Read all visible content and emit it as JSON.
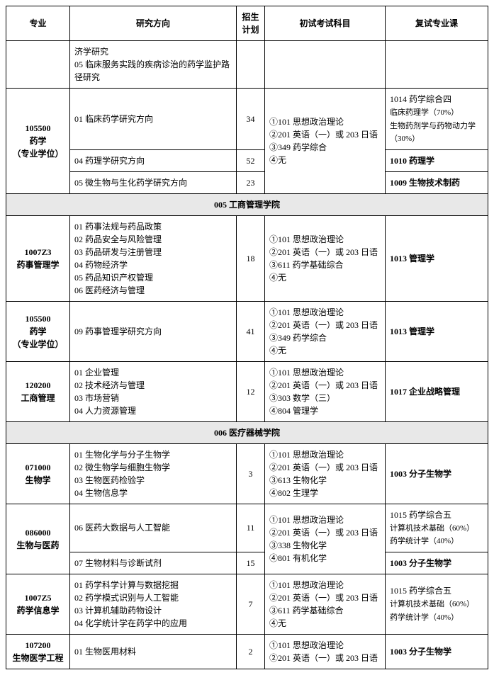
{
  "headers": {
    "major": "专业",
    "direction": "研究方向",
    "plan": "招生计划",
    "exam": "初试考试科目",
    "retest": "复试专业课"
  },
  "rows": [
    {
      "type": "data",
      "major": "",
      "direction": "济学研究\n05 临床服务实践的疾病诊治的药学监护路径研究",
      "plan": "",
      "exam": "",
      "retest": ""
    },
    {
      "type": "data",
      "major": "105500\n药学\n（专业学位）",
      "major_rowspan": 3,
      "direction": "01 临床药学研究方向",
      "plan": "34",
      "exam": "①101 思想政治理论\n②201 英语（一）或 203 日语\n③349 药学综合\n④无",
      "exam_rowspan": 3,
      "retest": "1014 药学综合四\n临床药理学（70%）\n生物药剂学与药物动力学（30%）",
      "retest_bold_first": true
    },
    {
      "type": "data",
      "direction": "04 药理学研究方向",
      "plan": "52",
      "retest": "1010 药理学",
      "retest_bold": true
    },
    {
      "type": "data",
      "direction": "05 微生物与生化药学研究方向",
      "plan": "23",
      "retest": "1009 生物技术制药",
      "retest_bold": true
    },
    {
      "type": "section",
      "label": "005 工商管理学院"
    },
    {
      "type": "data",
      "major": "1007Z3\n药事管理学",
      "direction": "01 药事法规与药品政策\n02 药品安全与风险管理\n03 药品研发与注册管理\n04 药物经济学\n05 药品知识产权管理\n06 医药经济与管理",
      "plan": "18",
      "exam": "①101 思想政治理论\n②201 英语（一）或 203 日语\n③611 药学基础综合\n④无",
      "retest": "1013 管理学",
      "retest_bold": true
    },
    {
      "type": "data",
      "major": "105500\n药学\n（专业学位）",
      "direction": "09 药事管理学研究方向",
      "plan": "41",
      "exam": "①101 思想政治理论\n②201 英语（一）或 203 日语\n③349 药学综合\n④无",
      "retest": "1013 管理学",
      "retest_bold": true
    },
    {
      "type": "data",
      "major": "120200\n工商管理",
      "direction": "01 企业管理\n02 技术经济与管理\n03 市场营销\n04 人力资源管理",
      "plan": "12",
      "exam": "①101 思想政治理论\n②201 英语（一）或 203 日语\n③303 数学（三）\n④804 管理学",
      "retest": "1017 企业战略管理",
      "retest_bold": true
    },
    {
      "type": "section",
      "label": "006 医疗器械学院"
    },
    {
      "type": "data",
      "major": "071000\n生物学",
      "direction": "01 生物化学与分子生物学\n02 微生物学与细胞生物学\n03 生物医药检验学\n04 生物信息学",
      "plan": "3",
      "exam": "①101 思想政治理论\n②201 英语（一）或 203 日语\n③613 生物化学\n④802 生理学",
      "retest": "1003 分子生物学",
      "retest_bold": true
    },
    {
      "type": "data",
      "major": "086000\n生物与医药",
      "major_rowspan": 2,
      "direction": "06 医药大数据与人工智能",
      "plan": "11",
      "exam": "①101 思想政治理论\n②201 英语（一）或 203 日语\n③338 生物化学\n④801 有机化学",
      "exam_rowspan": 2,
      "retest": "1015 药学综合五\n计算机技术基础（60%）\n药学统计学（40%）",
      "retest_bold_first": true
    },
    {
      "type": "data",
      "direction": "07 生物材料与诊断试剂",
      "plan": "15",
      "retest": "1003 分子生物学",
      "retest_bold": true
    },
    {
      "type": "data",
      "major": "1007Z5\n药学信息学",
      "direction": "01 药学科学计算与数据挖掘\n02 药学模式识别与人工智能\n03 计算机辅助药物设计\n04 化学统计学在药学中的应用",
      "plan": "7",
      "exam": "①101 思想政治理论\n②201 英语（一）或 203 日语\n③611 药学基础综合\n④无",
      "retest": "1015 药学综合五\n计算机技术基础（60%）\n药学统计学（40%）",
      "retest_bold_first": true
    },
    {
      "type": "data",
      "major": "107200\n生物医学工程",
      "direction": "01 生物医用材料",
      "plan": "2",
      "exam": "①101 思想政治理论\n②201 英语（一）或 203 日语",
      "retest": "1003 分子生物学",
      "retest_bold": true
    }
  ]
}
